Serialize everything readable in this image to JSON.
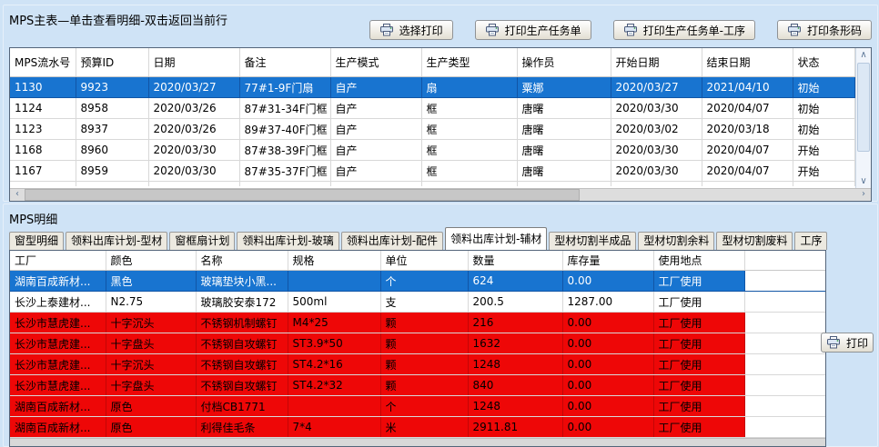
{
  "icons": {
    "up": "∧",
    "down": "∨",
    "left": "‹",
    "right": "›"
  },
  "colors": {
    "window_bg": "#cfe3f6",
    "selection_blue": "#1874d0",
    "alert_red": "#ee0707",
    "grid_line": "#d8d8d8"
  },
  "master": {
    "title": "MPS主表—单击查看明细-双击返回当前行",
    "buttons": [
      {
        "label": "选择打印"
      },
      {
        "label": "打印生产任务单"
      },
      {
        "label": "打印生产任务单-工序"
      },
      {
        "label": "打印条形码"
      }
    ],
    "columns": [
      "MPS流水号",
      "预算ID",
      "日期",
      "备注",
      "生产模式",
      "生产类型",
      "操作员",
      "开始日期",
      "结束日期",
      "状态"
    ],
    "rows": [
      {
        "state": "selected",
        "cells": [
          "1130",
          "9923",
          "2020/03/27",
          "77#1-9F门扇",
          "自产",
          "扇",
          "粟娜",
          "2020/03/27",
          "2021/04/10",
          "初始"
        ]
      },
      {
        "state": "normal",
        "cells": [
          "1124",
          "8958",
          "2020/03/26",
          "87#31-34F门框",
          "自产",
          "框",
          "唐曙",
          "2020/03/30",
          "2020/04/07",
          "初始"
        ]
      },
      {
        "state": "normal",
        "cells": [
          "1123",
          "8937",
          "2020/03/26",
          "89#37-40F门框",
          "自产",
          "框",
          "唐曙",
          "2020/03/02",
          "2020/03/18",
          "初始"
        ]
      },
      {
        "state": "normal",
        "cells": [
          "1168",
          "8960",
          "2020/03/30",
          "87#38-39F门框",
          "自产",
          "框",
          "唐曙",
          "2020/03/30",
          "2020/04/07",
          "开始"
        ]
      },
      {
        "state": "normal",
        "cells": [
          "1167",
          "8959",
          "2020/03/30",
          "87#35-37F门框",
          "自产",
          "框",
          "唐曙",
          "2020/03/30",
          "2020/04/07",
          "开始"
        ]
      }
    ]
  },
  "detail": {
    "title": "MPS明细",
    "tabs": [
      {
        "label": "窗型明细",
        "active": false
      },
      {
        "label": "领料出库计划-型材",
        "active": false
      },
      {
        "label": "窗框扇计划",
        "active": false
      },
      {
        "label": "领料出库计划-玻璃",
        "active": false
      },
      {
        "label": "领料出库计划-配件",
        "active": false
      },
      {
        "label": "领料出库计划-辅材",
        "active": true
      },
      {
        "label": "型材切割半成品",
        "active": false
      },
      {
        "label": "型材切割余料",
        "active": false
      },
      {
        "label": "型材切割废料",
        "active": false
      },
      {
        "label": "工序",
        "active": false
      }
    ],
    "columns": [
      "工厂",
      "颜色",
      "名称",
      "规格",
      "单位",
      "数量",
      "库存量",
      "使用地点"
    ],
    "rows": [
      {
        "state": "selected",
        "cells": [
          "湖南百成新材...",
          "黑色",
          "玻璃垫块小黑...",
          "",
          "个",
          "624",
          "0.00",
          "工厂使用"
        ]
      },
      {
        "state": "normal",
        "cells": [
          "长沙上泰建材...",
          "N2.75",
          "玻璃胶安泰172",
          "500ml",
          "支",
          "200.5",
          "1287.00",
          "工厂使用"
        ]
      },
      {
        "state": "alert",
        "cells": [
          "长沙市慧虎建...",
          "十字沉头",
          "不锈钢机制螺钉",
          "M4*25",
          "颗",
          "216",
          "0.00",
          "工厂使用"
        ]
      },
      {
        "state": "alert",
        "cells": [
          "长沙市慧虎建...",
          "十字盘头",
          "不锈钢自攻螺钉",
          "ST3.9*50",
          "颗",
          "1632",
          "0.00",
          "工厂使用"
        ]
      },
      {
        "state": "alert",
        "cells": [
          "长沙市慧虎建...",
          "十字沉头",
          "不锈钢自攻螺钉",
          "ST4.2*16",
          "颗",
          "1248",
          "0.00",
          "工厂使用"
        ]
      },
      {
        "state": "alert",
        "cells": [
          "长沙市慧虎建...",
          "十字盘头",
          "不锈钢自攻螺钉",
          "ST4.2*32",
          "颗",
          "840",
          "0.00",
          "工厂使用"
        ]
      },
      {
        "state": "alert",
        "cells": [
          "湖南百成新材...",
          "原色",
          "付档CB1771",
          "",
          "个",
          "1248",
          "0.00",
          "工厂使用"
        ]
      },
      {
        "state": "alert",
        "cells": [
          "湖南百成新材...",
          "原色",
          "利得佳毛条",
          "7*4",
          "米",
          "2911.81",
          "0.00",
          "工厂使用"
        ]
      }
    ],
    "print_button": "打印"
  }
}
